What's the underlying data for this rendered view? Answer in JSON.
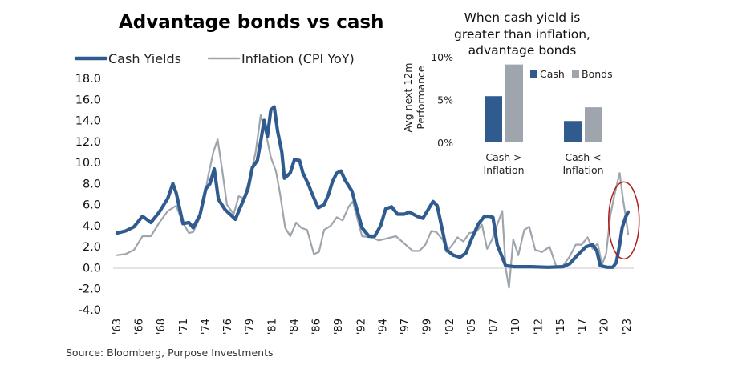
{
  "chart_data": [
    {
      "type": "line",
      "title": "Advantage bonds vs cash",
      "ylim": [
        -4,
        18
      ],
      "yticks": [
        "18.0",
        "16.0",
        "14.0",
        "12.0",
        "10.0",
        "8.0",
        "6.0",
        "4.0",
        "2.0",
        "0.0",
        "-2.0",
        "-4.0"
      ],
      "ytick_values": [
        18,
        16,
        14,
        12,
        10,
        8,
        6,
        4,
        2,
        0,
        -2,
        -4
      ],
      "xlim": [
        1963,
        2023.5
      ],
      "xticks": [
        "'63",
        "'66",
        "'68",
        "'71",
        "'74",
        "'76",
        "'79",
        "'81",
        "'84",
        "'86",
        "'89",
        "'92",
        "'94",
        "'97",
        "'99",
        "'02",
        "'05",
        "'07",
        "'10",
        "'12",
        "'15",
        "'17",
        "'20",
        "'23"
      ],
      "xtick_values": [
        1963,
        1965.6,
        1968.2,
        1970.9,
        1973.5,
        1976.1,
        1978.7,
        1981.4,
        1984,
        1986.6,
        1989.2,
        1991.9,
        1994.5,
        1997.1,
        1999.7,
        2002.4,
        2005,
        2007.6,
        2010.2,
        2012.9,
        2015.5,
        2018.1,
        2020.7,
        2023.4
      ],
      "legend": "top-left",
      "highlight_ellipse": {
        "x": 2023,
        "y": 4.5
      },
      "series": [
        {
          "name": "Cash Yields",
          "color": "#2f5b8e",
          "points": [
            [
              1963,
              3.3
            ],
            [
              1964,
              3.5
            ],
            [
              1965,
              3.9
            ],
            [
              1966,
              4.9
            ],
            [
              1967,
              4.3
            ],
            [
              1968,
              5.3
            ],
            [
              1969,
              6.6
            ],
            [
              1969.6,
              8.0
            ],
            [
              1970,
              7.1
            ],
            [
              1970.8,
              4.2
            ],
            [
              1971.5,
              4.3
            ],
            [
              1972,
              3.8
            ],
            [
              1972.8,
              5.0
            ],
            [
              1973.5,
              7.5
            ],
            [
              1974,
              8.0
            ],
            [
              1974.5,
              9.4
            ],
            [
              1975,
              6.5
            ],
            [
              1975.8,
              5.5
            ],
            [
              1976.5,
              5.0
            ],
            [
              1977,
              4.6
            ],
            [
              1977.5,
              5.6
            ],
            [
              1978,
              6.5
            ],
            [
              1978.5,
              7.5
            ],
            [
              1979,
              9.5
            ],
            [
              1979.6,
              10.2
            ],
            [
              1980,
              12.0
            ],
            [
              1980.4,
              14.0
            ],
            [
              1980.8,
              12.5
            ],
            [
              1981.2,
              15.0
            ],
            [
              1981.6,
              15.3
            ],
            [
              1982,
              13.0
            ],
            [
              1982.5,
              11.0
            ],
            [
              1982.8,
              8.5
            ],
            [
              1983.5,
              9.0
            ],
            [
              1984,
              10.3
            ],
            [
              1984.6,
              10.2
            ],
            [
              1985,
              9.0
            ],
            [
              1985.6,
              8.0
            ],
            [
              1986.2,
              6.8
            ],
            [
              1986.8,
              5.7
            ],
            [
              1987.5,
              6.0
            ],
            [
              1988,
              6.9
            ],
            [
              1988.5,
              8.2
            ],
            [
              1989,
              9.0
            ],
            [
              1989.5,
              9.2
            ],
            [
              1990,
              8.3
            ],
            [
              1990.8,
              7.3
            ],
            [
              1991.3,
              5.8
            ],
            [
              1992,
              3.8
            ],
            [
              1992.8,
              3.0
            ],
            [
              1993.5,
              3.0
            ],
            [
              1994.2,
              4.0
            ],
            [
              1994.8,
              5.6
            ],
            [
              1995.5,
              5.8
            ],
            [
              1996.2,
              5.1
            ],
            [
              1997,
              5.1
            ],
            [
              1997.6,
              5.3
            ],
            [
              1998.5,
              4.9
            ],
            [
              1999.2,
              4.7
            ],
            [
              1999.8,
              5.5
            ],
            [
              2000.4,
              6.3
            ],
            [
              2000.9,
              5.9
            ],
            [
              2001.5,
              3.6
            ],
            [
              2002,
              1.7
            ],
            [
              2002.8,
              1.2
            ],
            [
              2003.6,
              1.0
            ],
            [
              2004.3,
              1.4
            ],
            [
              2005,
              2.8
            ],
            [
              2005.8,
              4.2
            ],
            [
              2006.5,
              4.9
            ],
            [
              2007,
              4.9
            ],
            [
              2007.5,
              4.8
            ],
            [
              2008,
              2.2
            ],
            [
              2008.6,
              1.0
            ],
            [
              2009,
              0.2
            ],
            [
              2010,
              0.1
            ],
            [
              2012,
              0.1
            ],
            [
              2014,
              0.05
            ],
            [
              2015.8,
              0.1
            ],
            [
              2016.6,
              0.4
            ],
            [
              2017.5,
              1.2
            ],
            [
              2018.5,
              2.0
            ],
            [
              2019.3,
              2.2
            ],
            [
              2019.8,
              1.6
            ],
            [
              2020.2,
              0.2
            ],
            [
              2021,
              0.05
            ],
            [
              2021.7,
              0.05
            ],
            [
              2022.1,
              0.5
            ],
            [
              2022.5,
              2.2
            ],
            [
              2022.8,
              3.8
            ],
            [
              2023.2,
              4.8
            ],
            [
              2023.5,
              5.3
            ]
          ]
        },
        {
          "name": "Inflation (CPI YoY)",
          "color": "#9ea5ad",
          "points": [
            [
              1963,
              1.2
            ],
            [
              1964,
              1.3
            ],
            [
              1965,
              1.7
            ],
            [
              1966,
              3.0
            ],
            [
              1967,
              3.0
            ],
            [
              1968,
              4.3
            ],
            [
              1969,
              5.4
            ],
            [
              1970,
              5.9
            ],
            [
              1970.7,
              4.4
            ],
            [
              1971.5,
              3.3
            ],
            [
              1972,
              3.4
            ],
            [
              1972.7,
              4.6
            ],
            [
              1973.3,
              6.5
            ],
            [
              1973.8,
              8.8
            ],
            [
              1974.4,
              11.0
            ],
            [
              1974.9,
              12.2
            ],
            [
              1975.4,
              9.5
            ],
            [
              1976,
              6.0
            ],
            [
              1976.8,
              5.1
            ],
            [
              1977.4,
              6.8
            ],
            [
              1978,
              6.6
            ],
            [
              1978.8,
              8.8
            ],
            [
              1979.4,
              11.0
            ],
            [
              1980,
              14.5
            ],
            [
              1980.6,
              12.8
            ],
            [
              1981.2,
              10.5
            ],
            [
              1981.8,
              9.2
            ],
            [
              1982.3,
              7.0
            ],
            [
              1982.9,
              3.8
            ],
            [
              1983.5,
              3.0
            ],
            [
              1984.2,
              4.3
            ],
            [
              1984.8,
              3.8
            ],
            [
              1985.5,
              3.6
            ],
            [
              1986.3,
              1.3
            ],
            [
              1986.9,
              1.5
            ],
            [
              1987.5,
              3.6
            ],
            [
              1988.3,
              4.0
            ],
            [
              1989,
              4.8
            ],
            [
              1989.7,
              4.5
            ],
            [
              1990.4,
              5.8
            ],
            [
              1990.9,
              6.3
            ],
            [
              1991.5,
              4.5
            ],
            [
              1992,
              3.0
            ],
            [
              1993,
              2.9
            ],
            [
              1994,
              2.6
            ],
            [
              1995,
              2.8
            ],
            [
              1996,
              3.0
            ],
            [
              1997,
              2.3
            ],
            [
              1998,
              1.6
            ],
            [
              1998.8,
              1.6
            ],
            [
              1999.5,
              2.2
            ],
            [
              2000.2,
              3.5
            ],
            [
              2000.8,
              3.4
            ],
            [
              2001.6,
              2.6
            ],
            [
              2002,
              1.5
            ],
            [
              2002.8,
              2.3
            ],
            [
              2003.3,
              2.9
            ],
            [
              2004,
              2.5
            ],
            [
              2004.7,
              3.3
            ],
            [
              2005.5,
              3.4
            ],
            [
              2006.2,
              4.1
            ],
            [
              2006.8,
              1.8
            ],
            [
              2007.4,
              2.7
            ],
            [
              2008,
              4.1
            ],
            [
              2008.6,
              5.4
            ],
            [
              2009,
              0.0
            ],
            [
              2009.4,
              -1.9
            ],
            [
              2009.9,
              2.7
            ],
            [
              2010.5,
              1.2
            ],
            [
              2011.2,
              3.6
            ],
            [
              2011.8,
              3.9
            ],
            [
              2012.5,
              1.7
            ],
            [
              2013.3,
              1.5
            ],
            [
              2014.2,
              2.0
            ],
            [
              2015,
              0.1
            ],
            [
              2015.8,
              0.2
            ],
            [
              2016.6,
              1.1
            ],
            [
              2017.3,
              2.2
            ],
            [
              2018,
              2.2
            ],
            [
              2018.7,
              2.9
            ],
            [
              2019.3,
              1.8
            ],
            [
              2019.9,
              2.3
            ],
            [
              2020.4,
              0.3
            ],
            [
              2020.9,
              1.3
            ],
            [
              2021.4,
              5.0
            ],
            [
              2021.9,
              7.0
            ],
            [
              2022.5,
              9.0
            ],
            [
              2022.9,
              6.5
            ],
            [
              2023.2,
              5.0
            ],
            [
              2023.5,
              3.2
            ]
          ]
        }
      ]
    },
    {
      "type": "bar",
      "title": "When cash yield is greater than inflation, advantage bonds",
      "title_lines": [
        "When cash yield is",
        "greater than inflation,",
        "advantage bonds"
      ],
      "ylabel": "Avg next 12m Performance",
      "ylabel_lines": [
        "Avg next 12m",
        "Performance"
      ],
      "ylim": [
        0,
        10
      ],
      "yticks": [
        "10%",
        "5%",
        "0%"
      ],
      "ytick_values": [
        10,
        5,
        0
      ],
      "legend": "top-right",
      "categories": [
        "Cash > Inflation",
        "Cash < Inflation"
      ],
      "category_lines": [
        [
          "Cash >",
          "Inflation"
        ],
        [
          "Cash <",
          "Inflation"
        ]
      ],
      "series": [
        {
          "name": "Cash",
          "color": "#2f5b8e",
          "values": [
            5.4,
            2.5
          ]
        },
        {
          "name": "Bonds",
          "color": "#9ea5ad",
          "values": [
            9.1,
            4.1
          ]
        }
      ]
    }
  ],
  "source": "Source: Bloomberg, Purpose Investments"
}
